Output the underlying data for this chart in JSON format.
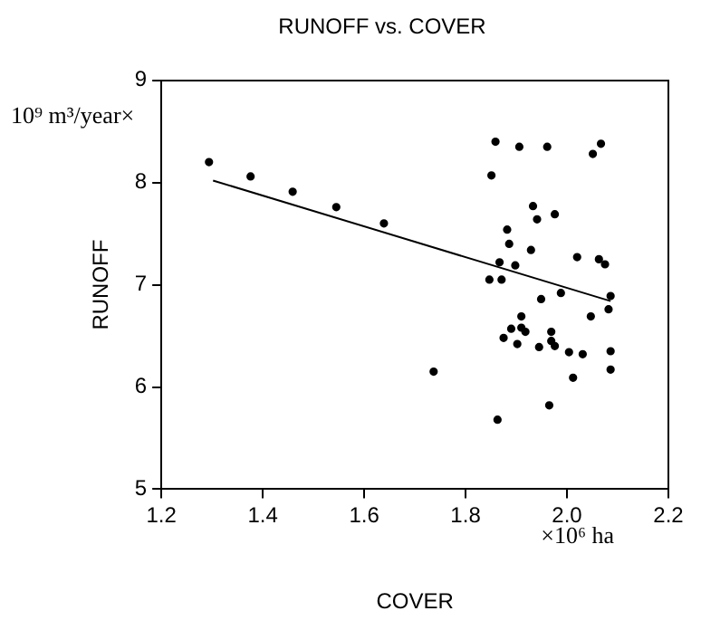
{
  "chart_data": {
    "type": "scatter",
    "title": "RUNOFF vs. COVER",
    "xlabel": "COVER",
    "ylabel": "RUNOFF",
    "annotations": [
      "10⁹ m³/year×",
      "×10⁶ ha"
    ],
    "xlim": [
      1.2,
      2.2
    ],
    "xticks": [
      {
        "value": 1.2,
        "label": "1.2"
      },
      {
        "value": 1.4,
        "label": "1.4"
      },
      {
        "value": 1.6,
        "label": "1.6"
      },
      {
        "value": 1.8,
        "label": "1.8"
      },
      {
        "value": 2.0,
        "label": "2.0"
      },
      {
        "value": 2.2,
        "label": "2.2"
      }
    ],
    "ylim": [
      5,
      9
    ],
    "yticks": [
      5,
      6,
      7,
      8,
      9
    ],
    "grid": false,
    "legend": false,
    "marker": "circle",
    "series": [
      {
        "color": "#000000",
        "x": [
          1.294,
          1.376,
          1.459,
          1.545,
          1.639,
          1.737,
          1.859,
          1.906,
          1.961,
          2.067,
          2.051,
          1.851,
          1.933,
          1.941,
          1.976,
          1.882,
          1.886,
          1.929,
          1.867,
          1.898,
          1.847,
          1.871,
          2.02,
          2.063,
          2.075,
          1.949,
          1.988,
          2.086,
          2.082,
          2.047,
          1.91,
          1.89,
          1.91,
          1.918,
          1.969,
          1.875,
          1.902,
          1.945,
          1.969,
          1.976,
          2.004,
          2.031,
          2.086,
          2.012,
          2.086,
          1.965,
          1.863
        ],
        "values": [
          8.2,
          8.06,
          7.91,
          7.76,
          7.6,
          6.15,
          8.4,
          8.35,
          8.35,
          8.38,
          8.28,
          8.07,
          7.77,
          7.64,
          7.69,
          7.54,
          7.4,
          7.34,
          7.22,
          7.19,
          7.05,
          7.05,
          7.27,
          7.25,
          7.2,
          6.86,
          6.92,
          6.89,
          6.76,
          6.69,
          6.69,
          6.57,
          6.58,
          6.54,
          6.54,
          6.48,
          6.42,
          6.39,
          6.45,
          6.4,
          6.34,
          6.32,
          6.35,
          6.09,
          6.17,
          5.82,
          5.68
        ]
      },
      {
        "type": "line",
        "color": "#000000",
        "marker": "none",
        "x": [
          1.302,
          2.086
        ],
        "values": [
          8.02,
          6.84
        ]
      }
    ]
  }
}
